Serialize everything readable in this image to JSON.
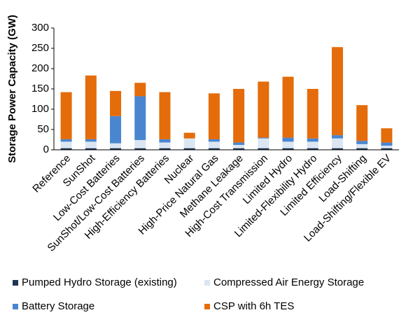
{
  "chart_data": {
    "type": "stacked-bar",
    "y_label": "Storage Power Capacity (GW)",
    "categories": [
      "Reference",
      "SunShot",
      "Low-Cost Batteries",
      "SunShot/Low-Cost Batteries",
      "High-Efficiency Batteries",
      "Nuclear",
      "High-Price Natural Gas",
      "Methane Leakage",
      "High-Cost Transmission",
      "Limited Hydro",
      "Limited-Flexibility Hydro",
      "Limited Efficiency",
      "Load-Shifting",
      "Load-Shifting/Flexible EV"
    ],
    "series": [
      {
        "name": "Pumped Hydro Storage (existing)",
        "color": "#1f3552",
        "values": [
          4,
          4,
          4,
          4,
          4,
          4,
          4,
          4,
          4,
          4,
          4,
          4,
          4,
          4
        ]
      },
      {
        "name": "Compressed Air Energy Storage",
        "color": "#dce6f2",
        "values": [
          16,
          16,
          12,
          20,
          14,
          24,
          16,
          8,
          24,
          16,
          16,
          24,
          10,
          6
        ]
      },
      {
        "name": "Battery Storage",
        "color": "#4a86d0",
        "values": [
          6,
          6,
          67,
          108,
          8,
          0,
          6,
          6,
          2,
          10,
          8,
          8,
          8,
          8
        ]
      },
      {
        "name": "CSP with 6h TES",
        "color": "#e46c0a",
        "values": [
          116,
          157,
          62,
          33,
          116,
          14,
          113,
          132,
          138,
          150,
          122,
          217,
          88,
          35
        ]
      }
    ],
    "ylim": [
      0,
      300
    ],
    "yticks": [
      0,
      50,
      100,
      150,
      200,
      250,
      300
    ],
    "grid": false
  }
}
